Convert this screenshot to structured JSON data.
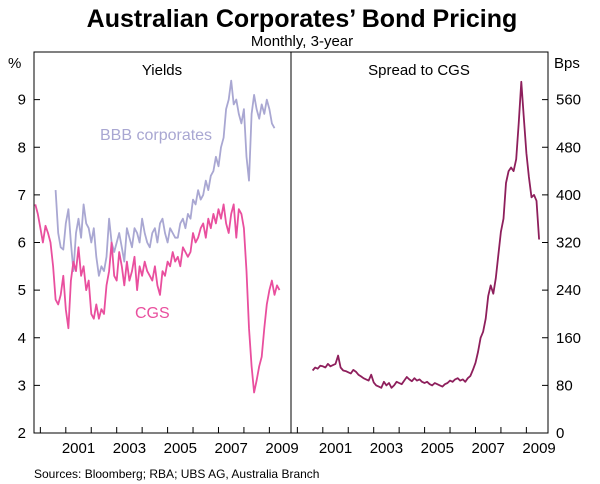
{
  "chart_data": {
    "type": "line",
    "title": "Australian Corporates’ Bond Pricing",
    "subtitle": "Monthly, 3-year",
    "source": "Sources: Bloomberg; RBA; UBS AG, Australia Branch",
    "x_tick_labels": [
      "2001",
      "2003",
      "2005",
      "2007",
      "2009"
    ],
    "x_ticks": [
      2001,
      2003,
      2005,
      2007,
      2009
    ],
    "xlim": [
      1999.75,
      2009.85
    ],
    "panels": [
      {
        "title": "Yields",
        "unit": "%",
        "ylim": [
          2,
          10
        ],
        "y_ticks": [
          2,
          3,
          4,
          5,
          6,
          7,
          8,
          9
        ],
        "y_tick_labels": [
          "2",
          "3",
          "4",
          "5",
          "6",
          "7",
          "8",
          "9"
        ],
        "series": [
          {
            "name": "BBB corporates",
            "color": "#a9a7d2",
            "x": [
              2000.6,
              2000.7,
              2000.8,
              2000.9,
              2001.0,
              2001.1,
              2001.2,
              2001.3,
              2001.4,
              2001.5,
              2001.6,
              2001.7,
              2001.8,
              2001.9,
              2002.0,
              2002.1,
              2002.2,
              2002.3,
              2002.4,
              2002.5,
              2002.6,
              2002.7,
              2002.8,
              2002.9,
              2003.0,
              2003.1,
              2003.2,
              2003.3,
              2003.4,
              2003.5,
              2003.6,
              2003.7,
              2003.8,
              2003.9,
              2004.0,
              2004.1,
              2004.2,
              2004.3,
              2004.4,
              2004.5,
              2004.6,
              2004.7,
              2004.8,
              2004.9,
              2005.0,
              2005.1,
              2005.2,
              2005.3,
              2005.4,
              2005.5,
              2005.6,
              2005.7,
              2005.8,
              2005.9,
              2006.0,
              2006.1,
              2006.2,
              2006.3,
              2006.4,
              2006.5,
              2006.6,
              2006.7,
              2006.8,
              2006.9,
              2007.0,
              2007.1,
              2007.2,
              2007.3,
              2007.4,
              2007.5,
              2007.6,
              2007.7,
              2007.8,
              2007.9,
              2008.0,
              2008.1,
              2008.2,
              2008.3,
              2008.4,
              2008.5,
              2008.6,
              2008.7,
              2008.8,
              2008.9,
              2009.0,
              2009.1,
              2009.2,
              2009.3,
              2009.4,
              2009.5
            ],
            "values": [
              7.1,
              6.2,
              5.9,
              5.85,
              6.4,
              6.7,
              6.0,
              5.4,
              6.2,
              6.5,
              6.1,
              6.8,
              6.4,
              6.3,
              6.0,
              6.3,
              5.7,
              5.3,
              5.5,
              5.4,
              5.7,
              6.5,
              6.0,
              5.8,
              6.0,
              6.2,
              5.9,
              5.6,
              6.3,
              6.1,
              5.9,
              6.3,
              6.2,
              6.0,
              6.5,
              6.2,
              6.0,
              5.9,
              6.2,
              6.3,
              6.0,
              6.4,
              6.5,
              6.2,
              6.0,
              6.3,
              6.2,
              6.1,
              6.1,
              6.4,
              6.5,
              6.3,
              6.6,
              6.5,
              6.9,
              6.8,
              7.1,
              6.9,
              7.0,
              7.3,
              7.1,
              7.4,
              7.5,
              7.8,
              7.6,
              8.0,
              8.2,
              8.8,
              9.0,
              9.4,
              8.9,
              9.0,
              8.7,
              8.5,
              8.8,
              7.8,
              7.3,
              8.7,
              9.1,
              8.8,
              8.6,
              8.9,
              8.7,
              9.0,
              8.8,
              8.5,
              8.4,
              null,
              null,
              null
            ]
          },
          {
            "name": "CGS",
            "color": "#e94f9e",
            "x": [
              1999.8,
              1999.9,
              2000.0,
              2000.1,
              2000.2,
              2000.3,
              2000.4,
              2000.5,
              2000.6,
              2000.7,
              2000.8,
              2000.9,
              2001.0,
              2001.1,
              2001.2,
              2001.3,
              2001.4,
              2001.5,
              2001.6,
              2001.7,
              2001.8,
              2001.9,
              2002.0,
              2002.1,
              2002.2,
              2002.3,
              2002.4,
              2002.5,
              2002.6,
              2002.7,
              2002.8,
              2002.9,
              2003.0,
              2003.1,
              2003.2,
              2003.3,
              2003.4,
              2003.5,
              2003.6,
              2003.7,
              2003.8,
              2003.9,
              2004.0,
              2004.1,
              2004.2,
              2004.3,
              2004.4,
              2004.5,
              2004.6,
              2004.7,
              2004.8,
              2004.9,
              2005.0,
              2005.1,
              2005.2,
              2005.3,
              2005.4,
              2005.5,
              2005.6,
              2005.7,
              2005.8,
              2005.9,
              2006.0,
              2006.1,
              2006.2,
              2006.3,
              2006.4,
              2006.5,
              2006.6,
              2006.7,
              2006.8,
              2006.9,
              2007.0,
              2007.1,
              2007.2,
              2007.3,
              2007.4,
              2007.5,
              2007.6,
              2007.7,
              2007.8,
              2007.9,
              2008.0,
              2008.1,
              2008.2,
              2008.3,
              2008.4,
              2008.5,
              2008.6,
              2008.7,
              2008.8,
              2008.9,
              2009.0,
              2009.1,
              2009.2,
              2009.3,
              2009.4
            ],
            "values": [
              6.8,
              6.6,
              6.3,
              6.0,
              6.35,
              6.2,
              6.0,
              5.5,
              4.8,
              4.7,
              4.9,
              5.3,
              4.6,
              4.2,
              5.2,
              5.6,
              5.4,
              5.9,
              5.3,
              5.5,
              5.0,
              5.2,
              4.5,
              4.4,
              4.7,
              4.4,
              4.6,
              4.5,
              5.1,
              5.4,
              6.0,
              5.3,
              5.2,
              5.8,
              5.5,
              5.1,
              5.6,
              5.2,
              5.4,
              5.7,
              5.0,
              5.5,
              5.3,
              5.6,
              5.4,
              5.3,
              5.2,
              5.5,
              5.1,
              4.9,
              5.4,
              5.3,
              5.6,
              5.5,
              5.8,
              5.6,
              5.7,
              5.5,
              5.9,
              5.8,
              5.7,
              5.8,
              6.2,
              6.0,
              6.1,
              6.3,
              6.4,
              6.1,
              6.5,
              6.3,
              6.6,
              6.4,
              6.7,
              6.5,
              6.8,
              6.4,
              6.2,
              6.6,
              6.8,
              6.1,
              6.7,
              6.6,
              6.3,
              5.4,
              4.2,
              3.4,
              2.85,
              3.1,
              3.4,
              3.6,
              4.2,
              4.7,
              5.0,
              5.2,
              4.9,
              5.1,
              5.0
            ]
          }
        ],
        "annotations": [
          {
            "text": "BBB corporates",
            "series": "BBB corporates"
          },
          {
            "text": "CGS",
            "series": "CGS"
          }
        ]
      },
      {
        "title": "Spread to CGS",
        "unit": "Bps",
        "ylim": [
          0,
          640
        ],
        "y_ticks": [
          0,
          80,
          160,
          240,
          320,
          400,
          480,
          560
        ],
        "y_tick_labels": [
          "0",
          "80",
          "160",
          "240",
          "320",
          "400",
          "480",
          "560"
        ],
        "series": [
          {
            "name": "Spread to CGS",
            "color": "#8e1f5c",
            "x": [
              2000.6,
              2000.7,
              2000.8,
              2000.9,
              2001.0,
              2001.1,
              2001.2,
              2001.3,
              2001.4,
              2001.5,
              2001.6,
              2001.7,
              2001.8,
              2001.9,
              2002.0,
              2002.1,
              2002.2,
              2002.3,
              2002.4,
              2002.5,
              2002.6,
              2002.7,
              2002.8,
              2002.9,
              2003.0,
              2003.1,
              2003.2,
              2003.3,
              2003.4,
              2003.5,
              2003.6,
              2003.7,
              2003.8,
              2003.9,
              2004.0,
              2004.1,
              2004.2,
              2004.3,
              2004.4,
              2004.5,
              2004.6,
              2004.7,
              2004.8,
              2004.9,
              2005.0,
              2005.1,
              2005.2,
              2005.3,
              2005.4,
              2005.5,
              2005.6,
              2005.7,
              2005.8,
              2005.9,
              2006.0,
              2006.1,
              2006.2,
              2006.3,
              2006.4,
              2006.5,
              2006.6,
              2006.7,
              2006.8,
              2006.9,
              2007.0,
              2007.1,
              2007.2,
              2007.3,
              2007.4,
              2007.5,
              2007.6,
              2007.7,
              2007.8,
              2007.9,
              2008.0,
              2008.1,
              2008.2,
              2008.3,
              2008.4,
              2008.5,
              2008.6,
              2008.7,
              2008.8,
              2008.9,
              2009.0,
              2009.1,
              2009.2,
              2009.3,
              2009.4,
              2009.5
            ],
            "values": [
              105,
              110,
              108,
              113,
              112,
              110,
              116,
              112,
              114,
              116,
              130,
              110,
              105,
              104,
              102,
              100,
              106,
              103,
              98,
              95,
              92,
              90,
              88,
              98,
              85,
              80,
              78,
              76,
              86,
              80,
              84,
              76,
              80,
              86,
              84,
              82,
              88,
              94,
              90,
              87,
              92,
              88,
              90,
              86,
              84,
              86,
              82,
              80,
              84,
              82,
              80,
              78,
              82,
              84,
              88,
              86,
              90,
              92,
              88,
              90,
              86,
              92,
              96,
              106,
              118,
              136,
              160,
              170,
              192,
              230,
              248,
              234,
              260,
              300,
              338,
              360,
              420,
              440,
              446,
              440,
              460,
              520,
              590,
              530,
              470,
              430,
              396,
              400,
              390,
              325
            ]
          }
        ]
      }
    ]
  }
}
